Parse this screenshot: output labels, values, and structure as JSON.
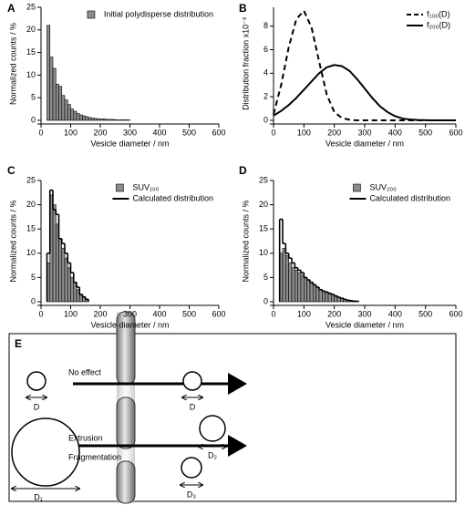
{
  "chart_data": [
    {
      "type": "histogram",
      "label": "A",
      "x_label": "Vesicle diameter / nm",
      "y_label": "Normalized counts / %",
      "bins": [
        20,
        30,
        40,
        50,
        60,
        70,
        80,
        90,
        100,
        110,
        120,
        130,
        140,
        150,
        160,
        170,
        180,
        190,
        200,
        210,
        220,
        230,
        240,
        250,
        260,
        270,
        280,
        290,
        300
      ],
      "series": [
        {
          "name": "Initial polydisperse distribution",
          "style": "bars",
          "color": "#8c8c8c",
          "values": [
            21,
            14,
            11.5,
            8,
            7.5,
            5.5,
            4.5,
            3.5,
            2.5,
            2,
            1.5,
            1.2,
            1,
            0.8,
            0.6,
            0.5,
            0.4,
            0.3,
            0.3,
            0.3,
            0.2,
            0.2,
            0.2,
            0.1,
            0.1,
            0.1,
            0.1,
            0.1
          ]
        }
      ],
      "xlim": [
        0,
        600
      ],
      "xticks": [
        0,
        100,
        200,
        300,
        400,
        500,
        600
      ],
      "ylim": [
        0,
        25
      ],
      "yticks": [
        0,
        5,
        10,
        15,
        20,
        25
      ],
      "legend": "upper right"
    },
    {
      "type": "line",
      "label": "B",
      "x_label": "Vesicle diameter / nm",
      "y_label": "Distribution fraction x10⁻³",
      "x": [
        0,
        25,
        50,
        75,
        100,
        125,
        150,
        175,
        200,
        225,
        250,
        275,
        300,
        325,
        350,
        375,
        400,
        425,
        450,
        475,
        500,
        525,
        550,
        575,
        600
      ],
      "series": [
        {
          "name": "f₁₀₀(D)",
          "color": "#000000",
          "dash": true,
          "values": [
            0.5,
            3,
            6.2,
            8.6,
            9.3,
            7.9,
            5,
            2.2,
            0.7,
            0.2,
            0.05,
            0,
            0,
            0,
            0,
            0,
            0,
            0,
            0,
            0,
            0,
            0,
            0,
            0,
            0
          ]
        },
        {
          "name": "f₂₀₀(D)",
          "color": "#000000",
          "dash": false,
          "values": [
            0.4,
            0.8,
            1.3,
            1.9,
            2.6,
            3.3,
            4,
            4.5,
            4.7,
            4.6,
            4.2,
            3.5,
            2.7,
            1.9,
            1.2,
            0.7,
            0.35,
            0.15,
            0.07,
            0.03,
            0.01,
            0,
            0,
            0,
            0
          ]
        }
      ],
      "xlim": [
        0,
        600
      ],
      "xticks": [
        0,
        100,
        200,
        300,
        400,
        500,
        600
      ],
      "ylim": [
        0,
        9.6
      ],
      "yticks": [
        0,
        2,
        4,
        6,
        8
      ],
      "legend": "upper right"
    },
    {
      "type": "histogram",
      "label": "C",
      "x_label": "Vesicle diameter / nm",
      "y_label": "Normalized counts / %",
      "bins": [
        20,
        30,
        40,
        50,
        60,
        70,
        80,
        90,
        100,
        110,
        120,
        130,
        140,
        150,
        160
      ],
      "series": [
        {
          "name": "SUV₁₀₀",
          "style": "bars",
          "color": "#8c8c8c",
          "values": [
            8,
            22,
            20,
            16,
            13,
            11,
            9,
            7,
            5,
            4,
            2.5,
            1.5,
            1,
            0.5
          ]
        },
        {
          "name": "Calculated distribution",
          "style": "step",
          "color": "#000000",
          "values": [
            10,
            23,
            19,
            18,
            13,
            12,
            10,
            8,
            6,
            4,
            3,
            1.5,
            1,
            0.5
          ]
        }
      ],
      "xlim": [
        0,
        600
      ],
      "xticks": [
        0,
        100,
        200,
        300,
        400,
        500,
        600
      ],
      "ylim": [
        0,
        25
      ],
      "yticks": [
        0,
        5,
        10,
        15,
        20,
        25
      ],
      "legend": "upper right"
    },
    {
      "type": "histogram",
      "label": "D",
      "x_label": "Vesicle diameter / nm",
      "y_label": "Normalized counts / %",
      "bins": [
        20,
        30,
        40,
        50,
        60,
        70,
        80,
        90,
        100,
        110,
        120,
        130,
        140,
        150,
        160,
        170,
        180,
        190,
        200,
        210,
        220,
        230,
        240,
        250,
        260,
        270,
        280
      ],
      "series": [
        {
          "name": "SUV₂₀₀",
          "style": "bars",
          "color": "#8c8c8c",
          "values": [
            10,
            11,
            9.5,
            8,
            7,
            6.5,
            6,
            5.5,
            5,
            4.5,
            4,
            3.5,
            3,
            2.5,
            2.2,
            2,
            1.8,
            1.5,
            1.2,
            1,
            0.8,
            0.5,
            0.4,
            0.3,
            0.2,
            0.1
          ]
        },
        {
          "name": "Calculated distribution",
          "style": "step",
          "color": "#000000",
          "values": [
            17,
            12,
            10,
            9,
            8,
            7,
            6.5,
            6,
            5,
            4.5,
            4,
            3.5,
            3,
            2.5,
            2.2,
            2,
            1.7,
            1.5,
            1.2,
            0.9,
            0.7,
            0.5,
            0.3,
            0.2,
            0.1,
            0.1
          ]
        }
      ],
      "xlim": [
        0,
        600
      ],
      "xticks": [
        0,
        100,
        200,
        300,
        400,
        500,
        600
      ],
      "ylim": [
        0,
        25
      ],
      "yticks": [
        0,
        5,
        10,
        15,
        20,
        25
      ],
      "legend": "upper right"
    }
  ],
  "diagram": {
    "label": "E",
    "no_effect": "No effect",
    "extrusion": "Extrusion",
    "fragmentation": "Fragmentation",
    "d_left": "D",
    "d_right": "D",
    "d1": "D₁",
    "d2": "D₂",
    "d3": "D₃"
  }
}
